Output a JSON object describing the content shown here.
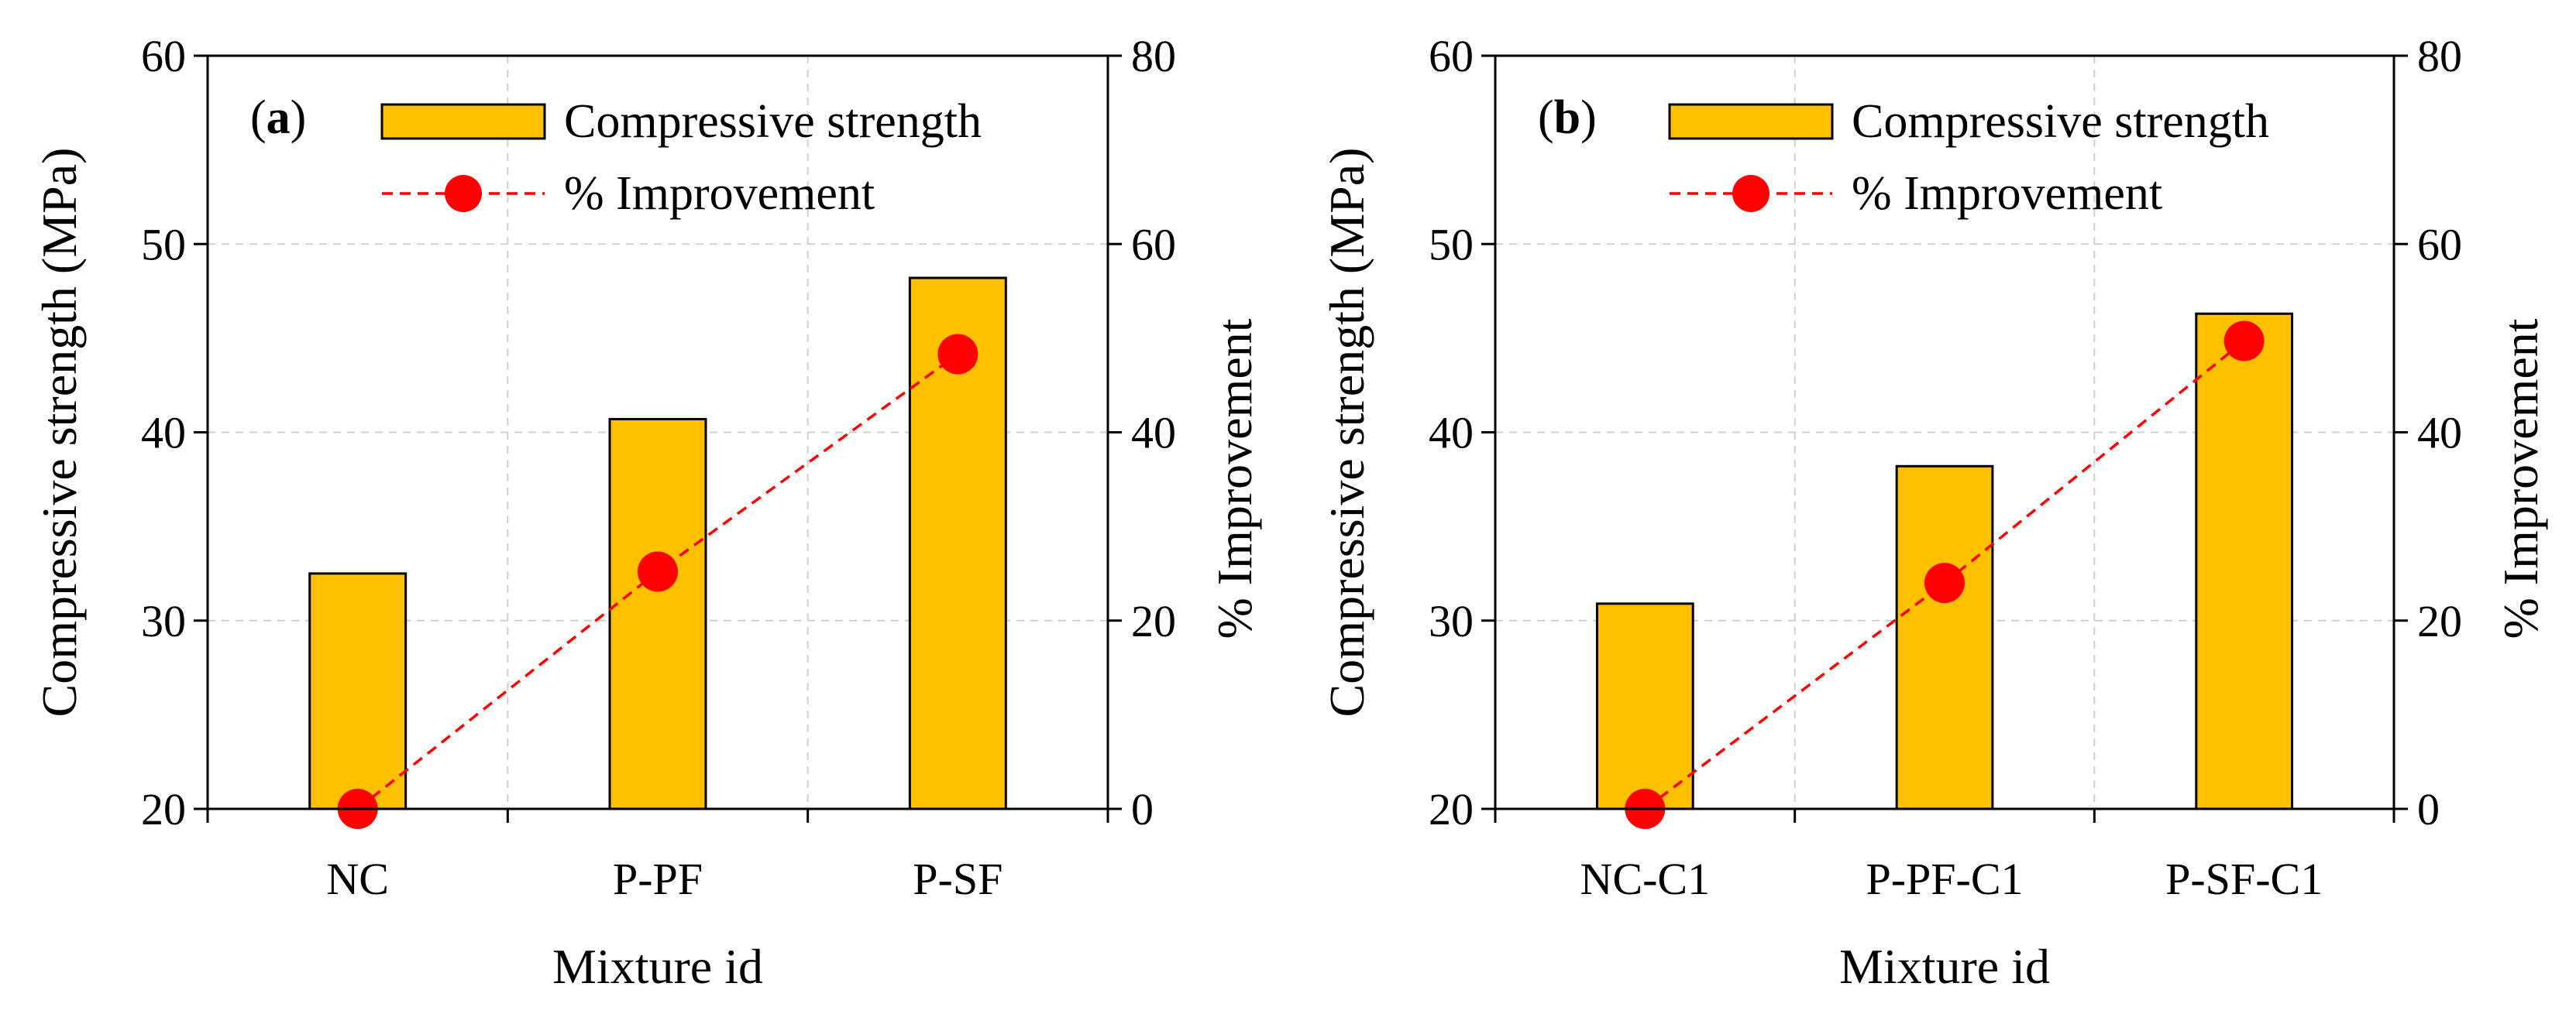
{
  "colors": {
    "bar": "#FFC000",
    "line": "#FF0000",
    "marker": "#FF0000"
  },
  "chart_data": [
    {
      "type": "bar",
      "panel": "a",
      "panel_label_open": "(",
      "panel_label_letter": "a",
      "panel_label_close": ")",
      "categories": [
        "NC",
        "P-PF",
        "P-SF"
      ],
      "series": [
        {
          "name": "Compressive strength",
          "axis": "left",
          "kind": "bar",
          "values": [
            32.5,
            40.7,
            48.2
          ]
        },
        {
          "name": "% Improvement",
          "axis": "right",
          "kind": "line",
          "values": [
            0,
            25.2,
            48.3
          ]
        }
      ],
      "xlabel": "Mixture id",
      "ylabel": "Compressive strength (MPa)",
      "y2label": "% Improvement",
      "ylim": [
        20,
        60
      ],
      "yticks": [
        "20",
        "30",
        "40",
        "50",
        "60"
      ],
      "y2lim": [
        0,
        80
      ],
      "y2ticks": [
        "0",
        "20",
        "40",
        "60",
        "80"
      ],
      "grid": true,
      "legend_position": "top-right",
      "legend": [
        "Compressive strength",
        "% Improvement"
      ]
    },
    {
      "type": "bar",
      "panel": "b",
      "panel_label_open": "(",
      "panel_label_letter": "b",
      "panel_label_close": ")",
      "categories": [
        "NC-C1",
        "P-PF-C1",
        "P-SF-C1"
      ],
      "series": [
        {
          "name": "Compressive strength",
          "axis": "left",
          "kind": "bar",
          "values": [
            30.9,
            38.2,
            46.3
          ]
        },
        {
          "name": "% Improvement",
          "axis": "right",
          "kind": "line",
          "values": [
            0,
            24.0,
            49.7
          ]
        }
      ],
      "xlabel": "Mixture id",
      "ylabel": "Compressive strength (MPa)",
      "y2label": "% Improvement",
      "ylim": [
        20,
        60
      ],
      "yticks": [
        "20",
        "30",
        "40",
        "50",
        "60"
      ],
      "y2lim": [
        0,
        80
      ],
      "y2ticks": [
        "0",
        "20",
        "40",
        "60",
        "80"
      ],
      "grid": true,
      "legend_position": "top-right",
      "legend": [
        "Compressive strength",
        "% Improvement"
      ]
    }
  ]
}
